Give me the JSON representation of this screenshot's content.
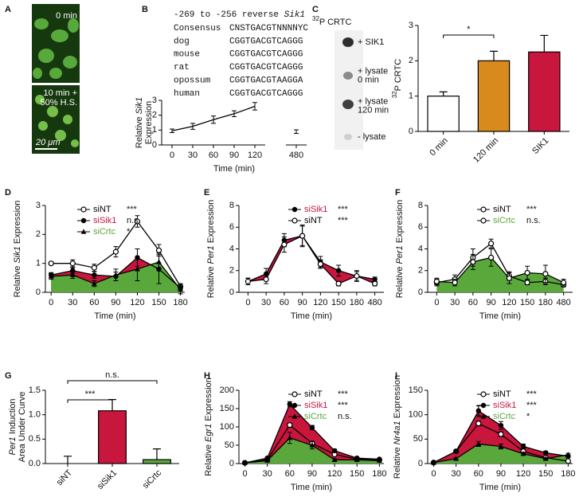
{
  "figure_a": {
    "label": "A",
    "top_label": "0 min",
    "bottom_label": [
      "10 min +",
      "50% H.S."
    ],
    "scale_bar": "20 μm"
  },
  "sequence_alignment": {
    "header": [
      "-269 to -256 reverse ",
      {
        "italic": "Sik1"
      }
    ],
    "rows": [
      [
        "Consensus",
        "CNSTGACGTNNNNYC"
      ],
      [
        "dog",
        "CGGTGACGTCAGGG"
      ],
      [
        "mouse",
        "CGGTGACGTCAGGG"
      ],
      [
        "rat",
        "CGGTGACGTCAGGG"
      ],
      [
        "opossum",
        "CGGTGACGTAAGGA"
      ],
      [
        "human",
        "CGGTGACGTCAGGG"
      ]
    ]
  },
  "figure_c_blot": {
    "label": "C",
    "title_sup": "32",
    "title": "P CRTC",
    "lanes": [
      [
        "+ SIK1"
      ],
      [
        "+ lysate",
        "0 min"
      ],
      [
        "+ lysate",
        "120 min"
      ],
      [
        "- lysate"
      ]
    ]
  },
  "chart_data": [
    {
      "type": "line",
      "panel": "B",
      "categories": [
        "0",
        "30",
        "60",
        "90",
        "120",
        null,
        "480"
      ],
      "ylabel": [
        [
          "Relative ",
          {
            "italic": "Sik1"
          }
        ],
        [
          "Expression"
        ]
      ],
      "xlabel": "Time (min)",
      "ylim": [
        0,
        3
      ],
      "yticks": [
        0,
        1,
        2,
        3
      ],
      "series": [
        {
          "color": "#000000",
          "marker": "none",
          "values": [
            0.95,
            1.25,
            1.7,
            2.1,
            2.6,
            null,
            0.9
          ],
          "errors": [
            0.12,
            0.2,
            0.25,
            0.2,
            0.25,
            null,
            0.12
          ]
        }
      ]
    },
    {
      "type": "bar",
      "categories": [
        "0 min",
        "120 min",
        "SIK1"
      ],
      "values": [
        1.0,
        2.0,
        2.25
      ],
      "errors": [
        0.12,
        0.27,
        0.47
      ],
      "colors": [
        "#ffffff",
        "#d88a1c",
        "#c8163c"
      ],
      "ylabel": [
        [
          {
            "sup": "32"
          },
          "P CRTC"
        ]
      ],
      "ylim": [
        0,
        3
      ],
      "yticks": [
        0,
        1,
        2,
        3
      ],
      "brackets": [
        {
          "from": 0,
          "to": 1,
          "label": "*"
        }
      ]
    },
    {
      "type": "line",
      "panel": "D",
      "x": [
        0,
        30,
        60,
        90,
        120,
        150,
        180
      ],
      "xlim": [
        -8,
        186
      ],
      "xticks": [
        0,
        30,
        60,
        90,
        120,
        150,
        180
      ],
      "ylabel": [
        [
          "Relative ",
          {
            "italic": "Sik1"
          },
          " Expression"
        ]
      ],
      "xlabel": "Time (min)",
      "ylim": [
        0,
        3
      ],
      "yticks": [
        0,
        1,
        2,
        3
      ],
      "legend": "upper left",
      "series": [
        {
          "name": "siNT",
          "significance": "***",
          "color": "#000000",
          "marker": "open-circle",
          "values": [
            1.0,
            1.0,
            0.85,
            1.4,
            2.45,
            1.45,
            0.2
          ],
          "errors": [
            0.05,
            0.12,
            0.12,
            0.18,
            0.2,
            0.2,
            0.1
          ]
        },
        {
          "name": "siSik1",
          "significance": "n.s.",
          "color": "#c8163c",
          "marker": "circle",
          "fill": true,
          "values": [
            0.6,
            0.75,
            0.6,
            0.55,
            1.2,
            0.8,
            0.15
          ],
          "errors": [
            0.08,
            0.1,
            0.12,
            0.15,
            0.3,
            0.5,
            0.1
          ]
        },
        {
          "name": "siCrtc",
          "significance": "*",
          "color": "#5aa83c",
          "marker": "triangle",
          "fill": true,
          "values": [
            0.55,
            0.6,
            0.3,
            0.6,
            0.8,
            1.05,
            0.1
          ],
          "errors": [
            0.1,
            0.12,
            0.1,
            0.2,
            0.4,
            0.3,
            0.15
          ]
        }
      ]
    },
    {
      "type": "line",
      "panel": "E",
      "categories": [
        "0",
        "30",
        "60",
        "90",
        "120",
        "150",
        "180",
        "480"
      ],
      "ylabel": [
        [
          "Relative ",
          {
            "italic": "Per1"
          },
          " Expression"
        ]
      ],
      "xlabel": "Time (min)",
      "ylim": [
        0,
        8
      ],
      "yticks": [
        0,
        2,
        4,
        6,
        8
      ],
      "legend": "upper right",
      "series": [
        {
          "name": "siSik1",
          "significance": "***",
          "color": "#c8163c",
          "marker": "circle",
          "fill": true,
          "fill_to": 1,
          "values": [
            1.0,
            1.7,
            4.8,
            5.2,
            2.8,
            2.0,
            1.5,
            1.2
          ],
          "errors": [
            0.3,
            0.5,
            0.6,
            0.9,
            0.5,
            0.5,
            0.4,
            0.2
          ]
        },
        {
          "name": "siNT",
          "significance": "***",
          "color": "#000000",
          "marker": "open-circle",
          "values": [
            1.0,
            1.2,
            4.4,
            5.2,
            2.6,
            0.8,
            1.5,
            0.8
          ],
          "errors": [
            0.3,
            0.4,
            0.7,
            1.0,
            0.4,
            0.2,
            0.5,
            0.2
          ]
        }
      ]
    },
    {
      "type": "line",
      "panel": "F",
      "categories": [
        "0",
        "30",
        "60",
        "90",
        "120",
        "150",
        "180",
        "480"
      ],
      "ylabel": [
        [
          "Relative ",
          {
            "italic": "Per1"
          },
          " Expression"
        ]
      ],
      "xlabel": "Time (min)",
      "ylim": [
        0,
        8
      ],
      "yticks": [
        0,
        2,
        4,
        6,
        8
      ],
      "legend": "upper right",
      "series": [
        {
          "name": "siNT",
          "significance": "***",
          "color": "#000000",
          "marker": "open-circle",
          "values": [
            0.9,
            1.2,
            3.2,
            4.5,
            1.5,
            0.9,
            1.0,
            0.7
          ],
          "errors": [
            0.3,
            0.4,
            0.8,
            0.4,
            0.4,
            0.2,
            0.3,
            0.2
          ]
        },
        {
          "name": "siCrtc",
          "significance": "n.s.",
          "color": "#5aa83c",
          "marker": "open-circle",
          "fill": true,
          "values": [
            1.0,
            0.9,
            2.8,
            3.2,
            1.3,
            1.8,
            1.7,
            0.9
          ],
          "errors": [
            0.3,
            0.3,
            0.7,
            0.8,
            0.5,
            0.6,
            0.8,
            0.3
          ]
        }
      ]
    },
    {
      "type": "bar",
      "panel": "G",
      "categories": [
        "siNT",
        "siSik1",
        "siCrtc"
      ],
      "values": [
        0,
        1.08,
        0.08
      ],
      "errors": [
        0.15,
        0.23,
        0.22
      ],
      "colors": [
        "#ffffff",
        "#c8163c",
        "#5aa83c"
      ],
      "ylabel": [
        [
          {
            "italic": "Per1"
          },
          " Induction"
        ],
        [
          "Area Under Curve"
        ]
      ],
      "ylim": [
        0,
        1.5
      ],
      "yticks": [
        {
          "value": 0,
          "label": "0.0"
        },
        0.5,
        {
          "value": 1,
          "label": "1.0"
        },
        1.5
      ],
      "brackets": [
        {
          "from": 0,
          "to": 1,
          "label": "***"
        },
        {
          "from": 0,
          "to": 2,
          "label": "n.s."
        }
      ]
    },
    {
      "type": "line",
      "panel": "H",
      "x": [
        0,
        30,
        60,
        90,
        120,
        150,
        180
      ],
      "xlim": [
        -8,
        186
      ],
      "xticks": [
        0,
        30,
        60,
        90,
        120,
        150,
        180
      ],
      "ylabel": [
        [
          "Relative ",
          {
            "italic": "Egr1"
          },
          " Expression"
        ]
      ],
      "xlabel": "Time (min)",
      "ylim": [
        0,
        200
      ],
      "yticks": [
        0,
        50,
        100,
        150,
        200
      ],
      "legend": "upper right",
      "series": [
        {
          "name": "siNT",
          "significance": "***",
          "color": "#000000",
          "marker": "open-circle",
          "values": [
            2,
            10,
            105,
            55,
            25,
            12,
            10
          ],
          "errors": [
            1,
            2,
            5,
            5,
            3,
            2,
            2
          ]
        },
        {
          "name": "siSik1",
          "significance": "***",
          "color": "#c8163c",
          "marker": "circle",
          "fill": true,
          "values": [
            2,
            15,
            162,
            98,
            35,
            15,
            12
          ],
          "errors": [
            1,
            2,
            7,
            6,
            4,
            2,
            2
          ]
        },
        {
          "name": "siCrtc",
          "significance": "n.s.",
          "color": "#5aa83c",
          "marker": "triangle",
          "fill": true,
          "values": [
            2,
            8,
            70,
            50,
            10,
            10,
            8
          ],
          "errors": [
            1,
            1,
            15,
            10,
            3,
            2,
            2
          ]
        }
      ]
    },
    {
      "type": "line",
      "panel": "I",
      "x": [
        0,
        30,
        60,
        90,
        120,
        150,
        180
      ],
      "xlim": [
        -8,
        186
      ],
      "xticks": [
        0,
        30,
        60,
        90,
        120,
        150,
        180
      ],
      "ylabel": [
        [
          "Relative ",
          {
            "italic": "Nr4a1"
          },
          " Expression"
        ]
      ],
      "xlabel": "Time (min)",
      "ylim": [
        0,
        150
      ],
      "yticks": [
        0,
        50,
        100,
        150
      ],
      "legend": "upper right",
      "series": [
        {
          "name": "siNT",
          "significance": "***",
          "color": "#000000",
          "marker": "open-circle",
          "values": [
            2,
            25,
            82,
            60,
            25,
            12,
            5
          ],
          "errors": [
            1,
            3,
            5,
            5,
            4,
            2,
            2
          ]
        },
        {
          "name": "siSik1",
          "significance": "***",
          "color": "#c8163c",
          "marker": "circle",
          "fill": true,
          "values": [
            2,
            25,
            108,
            78,
            35,
            22,
            15
          ],
          "errors": [
            1,
            3,
            10,
            8,
            5,
            3,
            3
          ]
        },
        {
          "name": "siCrtc",
          "significance": "*",
          "color": "#5aa83c",
          "marker": "triangle",
          "fill": true,
          "values": [
            2,
            10,
            40,
            35,
            20,
            10,
            18
          ],
          "errors": [
            1,
            2,
            5,
            5,
            3,
            2,
            3
          ]
        }
      ]
    }
  ]
}
